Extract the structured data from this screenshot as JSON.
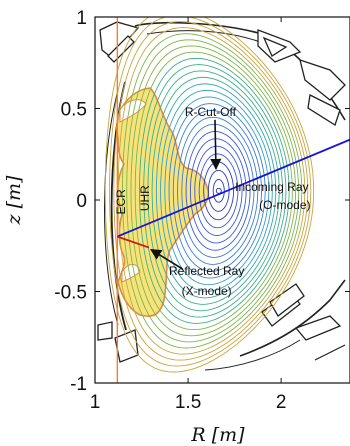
{
  "chart_data": {
    "type": "contour",
    "xlabel": "R [m]",
    "ylabel": "z [m]",
    "xlim": [
      1.0,
      2.37
    ],
    "ylim": [
      -1.0,
      1.0
    ],
    "x_ticks": [
      1,
      1.5,
      2
    ],
    "x_tick_labels": [
      "1",
      "1.5",
      "2"
    ],
    "y_ticks": [
      -1,
      -0.5,
      0,
      0.5,
      1
    ],
    "y_tick_labels": [
      "-1",
      "-0.5",
      "0",
      "0.5",
      "1"
    ],
    "grid": false,
    "magnetic_axis": {
      "R": 1.665,
      "z": 0.05
    },
    "contours": {
      "count": 26,
      "max_radius_R": 0.56,
      "max_radius_z": 0.99
    },
    "ecr_line_R": 1.12,
    "incoming_ray": {
      "from": [
        1.12,
        -0.2
      ],
      "to": [
        2.37,
        0.33
      ],
      "color": "#1515d6"
    },
    "reflected_ray": {
      "from": [
        1.12,
        -0.2
      ],
      "to": [
        1.29,
        -0.26
      ],
      "color": "#d61515"
    },
    "region_fill_color": "#f7e37c",
    "region_edge_color": "#e08a40",
    "annotations": [
      {
        "text": "R-Cut-Off",
        "x": 1.62,
        "z": 0.46,
        "arrow_to": [
          1.65,
          0.17
        ]
      },
      {
        "text": "Incoming Ray",
        "x": 1.95,
        "z": 0.05
      },
      {
        "text": "(O-mode)",
        "x": 2.02,
        "z": -0.05
      },
      {
        "text": "Reflected Ray",
        "x": 1.6,
        "z": -0.41,
        "arrow_to": [
          1.29,
          -0.26
        ]
      },
      {
        "text": "(X-mode)",
        "x": 1.6,
        "z": -0.52
      },
      {
        "text": "ECR",
        "x": 1.16,
        "z": -0.01,
        "rotate": -90
      },
      {
        "text": "UHR",
        "x": 1.29,
        "z": 0.01,
        "rotate": -90
      }
    ]
  }
}
